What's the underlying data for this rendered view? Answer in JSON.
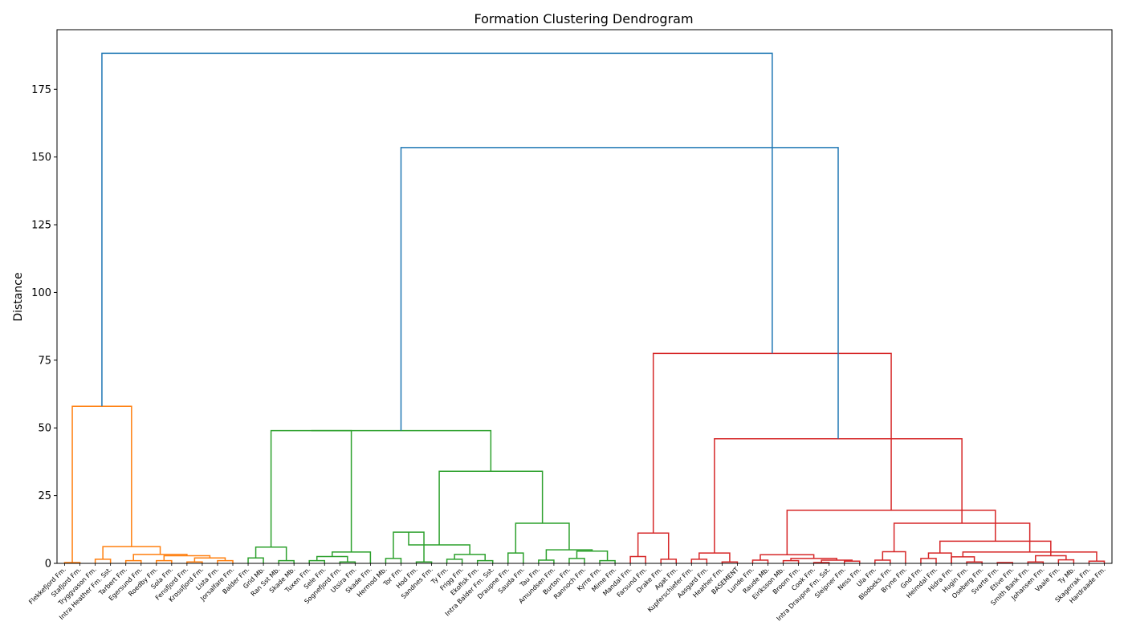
{
  "chart_data": {
    "type": "dendrogram",
    "title": "Formation Clustering Dendrogram",
    "xlabel": "",
    "ylabel": "Distance",
    "ylim": [
      0,
      197
    ],
    "yticks": [
      0,
      25,
      50,
      75,
      100,
      125,
      150,
      175
    ],
    "grid": false,
    "colors": {
      "above_threshold": "#1f77b4",
      "cluster_1": "#ff7f0e",
      "cluster_2": "#2ca02c",
      "cluster_3": "#d62728"
    },
    "leaves": [
      "Flekkefjord Fm.",
      "Stafjord Fm.",
      "Tryggvason Fm.",
      "Intra Heather Fm. Sst.",
      "Tarbert Fm.",
      "Egersund Fm.",
      "Roedby Fm.",
      "Sola Fm.",
      "Fensfjord Fm.",
      "Krossfjord Fm.",
      "Lista Fm.",
      "Jorsalfare Fm.",
      "Balder Fm.",
      "Grid Mb.",
      "Ran Sst Mb.",
      "Skade Mb.",
      "Tuxen Fm.",
      "Sele Fm.",
      "Sognefjord Fm.",
      "Utsira Fm.",
      "Skade Fm.",
      "Hermod Mb.",
      "Tor Fm.",
      "Hod Fm.",
      "Sandnes Fm.",
      "Ty Fm.",
      "Frigg Fm.",
      "Ekofisk Fm.",
      "Intra Balder Fm. Sst.",
      "Draupne Fm.",
      "Sauda Fm.",
      "Tau Fm.",
      "Amundsen Fm.",
      "Burton Fm.",
      "Rannoch Fm.",
      "Kyrre Fm.",
      "Mime Fm.",
      "Mandal Fm.",
      "Farsund Fm.",
      "Drake Fm.",
      "Agat Fm.",
      "Kupferschiefer Fm.",
      "Aasgard Fm.",
      "Heather Fm.",
      "BASEMENT",
      "Lunde Fm.",
      "Raude Mb.",
      "Eiriksson Mb.",
      "Broom Fm.",
      "Cook Fm.",
      "Intra Draupne Fm. Sst.",
      "Sleipner Fm.",
      "Ness Fm.",
      "Ula Fm.",
      "Blodoeks Fm.",
      "Bryne Fm.",
      "Gnd Fm.",
      "Heimdal Fm.",
      "Hidra Fm.",
      "Hugin Fm.",
      "Oseberg Fm.",
      "Svarte Fm.",
      "Etive Fm.",
      "Smith Bank Fm.",
      "Johansen Fm.",
      "Vaale Fm.",
      "Ty Mb.",
      "Skagerrak Fm.",
      "Hardraade Fm."
    ],
    "merges": [
      [
        0,
        1,
        0.3,
        "cluster_1"
      ],
      [
        2,
        3,
        1.5,
        "cluster_1"
      ],
      [
        4,
        5,
        1.0,
        "cluster_1"
      ],
      [
        6,
        7,
        1.0,
        "cluster_1"
      ],
      [
        8,
        9,
        0.5,
        "cluster_1"
      ],
      [
        10,
        11,
        1.0,
        "cluster_1"
      ],
      [
        -5,
        -6,
        2.0,
        "cluster_1"
      ],
      [
        -4,
        -7,
        2.8,
        "cluster_1"
      ],
      [
        -3,
        -8,
        3.3,
        "cluster_1"
      ],
      [
        -2,
        -9,
        6.2,
        "cluster_1"
      ],
      [
        -1,
        -10,
        58.0,
        "cluster_1"
      ],
      [
        12,
        13,
        2.0,
        "cluster_2"
      ],
      [
        14,
        15,
        1.0,
        "cluster_2"
      ],
      [
        -12,
        -13,
        6.0,
        "cluster_2"
      ],
      [
        16,
        17,
        1.0,
        "cluster_2"
      ],
      [
        18,
        19,
        0.5,
        "cluster_2"
      ],
      [
        -15,
        -16,
        2.5,
        "cluster_2"
      ],
      [
        -17,
        20,
        4.2,
        "cluster_2"
      ],
      [
        -14,
        -18,
        49.0,
        "cluster_2"
      ],
      [
        21,
        22,
        1.8,
        "cluster_2"
      ],
      [
        23,
        24,
        0.5,
        "cluster_2"
      ],
      [
        -20,
        -21,
        11.5,
        "cluster_2"
      ],
      [
        25,
        26,
        1.5,
        "cluster_2"
      ],
      [
        27,
        28,
        1.0,
        "cluster_2"
      ],
      [
        -23,
        -24,
        3.3,
        "cluster_2"
      ],
      [
        -22,
        -25,
        6.8,
        "cluster_2"
      ],
      [
        29,
        30,
        3.8,
        "cluster_2"
      ],
      [
        31,
        32,
        1.2,
        "cluster_2"
      ],
      [
        33,
        34,
        1.8,
        "cluster_2"
      ],
      [
        35,
        36,
        1.0,
        "cluster_2"
      ],
      [
        -29,
        -30,
        4.5,
        "cluster_2"
      ],
      [
        -28,
        -31,
        5.0,
        "cluster_2"
      ],
      [
        -27,
        -32,
        14.8,
        "cluster_2"
      ],
      [
        -26,
        -33,
        34.0,
        "cluster_2"
      ],
      [
        -19,
        -34,
        49.0,
        "cluster_2"
      ],
      [
        37,
        38,
        2.5,
        "cluster_3"
      ],
      [
        39,
        40,
        1.5,
        "cluster_3"
      ],
      [
        -36,
        -37,
        11.2,
        "cluster_3"
      ],
      [
        41,
        42,
        1.5,
        "cluster_3"
      ],
      [
        43,
        44,
        0.5,
        "cluster_3"
      ],
      [
        -39,
        -40,
        3.8,
        "cluster_3"
      ],
      [
        45,
        46,
        1.2,
        "cluster_3"
      ],
      [
        47,
        48,
        1.0,
        "cluster_3"
      ],
      [
        49,
        50,
        0.3,
        "cluster_3"
      ],
      [
        51,
        52,
        0.8,
        "cluster_3"
      ],
      [
        -44,
        -45,
        1.2,
        "cluster_3"
      ],
      [
        -43,
        -46,
        1.8,
        "cluster_3"
      ],
      [
        -42,
        -47,
        3.2,
        "cluster_3"
      ],
      [
        53,
        54,
        1.2,
        "cluster_3"
      ],
      [
        -49,
        55,
        4.3,
        "cluster_3"
      ],
      [
        56,
        57,
        1.8,
        "cluster_3"
      ],
      [
        -51,
        58,
        3.8,
        "cluster_3"
      ],
      [
        59,
        60,
        0.5,
        "cluster_3"
      ],
      [
        61,
        62,
        0.3,
        "cluster_3"
      ],
      [
        58,
        -53,
        2.4,
        "cluster_3"
      ],
      [
        63,
        64,
        0.5,
        "cluster_3"
      ],
      [
        65,
        66,
        1.3,
        "cluster_3"
      ],
      [
        67,
        68,
        0.8,
        "cluster_3"
      ],
      [
        -56,
        -57,
        2.8,
        "cluster_3"
      ],
      [
        -55,
        -58,
        4.2,
        "cluster_3"
      ],
      [
        -52,
        -59,
        8.2,
        "cluster_3"
      ],
      [
        -50,
        -60,
        14.8,
        "cluster_3"
      ],
      [
        -48,
        -61,
        19.6,
        "cluster_3"
      ],
      [
        -41,
        -62,
        46.0,
        "cluster_3"
      ],
      [
        -38,
        -63,
        77.5,
        "cluster_3"
      ],
      [
        -35,
        -64,
        153.5,
        "above_threshold"
      ],
      [
        -11,
        -65,
        188.3,
        "above_threshold"
      ]
    ]
  }
}
